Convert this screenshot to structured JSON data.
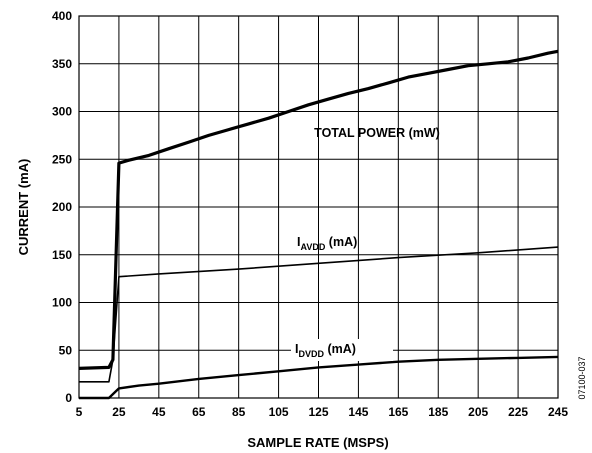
{
  "chart_data": {
    "type": "line",
    "xlabel": "SAMPLE RATE (MSPS)",
    "ylabel": "CURRENT (mA)",
    "xlim": [
      5,
      245
    ],
    "ylim": [
      0,
      400
    ],
    "xticks": [
      5,
      25,
      45,
      65,
      85,
      105,
      125,
      145,
      165,
      185,
      205,
      225,
      245
    ],
    "yticks": [
      0,
      50,
      100,
      150,
      200,
      250,
      300,
      350,
      400
    ],
    "grid": true,
    "series": [
      {
        "name": "TOTAL POWER (mW)",
        "x": [
          5,
          20,
          22,
          25,
          30,
          40,
          50,
          60,
          70,
          80,
          90,
          100,
          110,
          120,
          130,
          140,
          150,
          160,
          170,
          180,
          190,
          200,
          210,
          220,
          230,
          240,
          245
        ],
        "values": [
          31,
          32,
          40,
          246,
          249,
          254,
          261,
          268,
          275,
          281,
          287,
          293,
          300,
          307,
          313,
          319,
          324,
          330,
          336,
          340,
          344,
          348,
          350,
          352,
          356,
          361,
          363
        ]
      },
      {
        "name_main": "I",
        "name_sub": "AVDD",
        "name_unit": " (mA)",
        "x": [
          5,
          20,
          22,
          25,
          45,
          85,
          125,
          165,
          205,
          245
        ],
        "values": [
          17,
          17,
          40,
          127,
          130,
          135,
          141,
          147,
          152,
          158
        ]
      },
      {
        "name_main": "I",
        "name_sub": "DVDD",
        "name_unit": " (mA)",
        "x": [
          5,
          20,
          25,
          35,
          45,
          65,
          85,
          105,
          125,
          145,
          165,
          185,
          205,
          225,
          245
        ],
        "values": [
          0,
          0,
          10,
          13,
          15,
          20,
          24,
          28,
          32,
          35,
          38,
          40,
          41,
          42,
          43
        ]
      }
    ]
  },
  "figure_code": "07100-037",
  "colors": {
    "line": "#000000",
    "grid": "#000000",
    "background": "#ffffff"
  }
}
